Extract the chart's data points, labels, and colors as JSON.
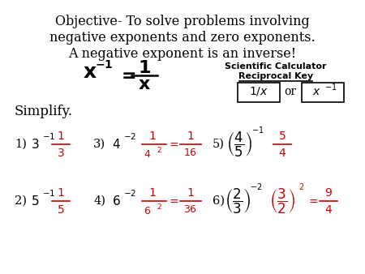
{
  "bg_color": "#ffffff",
  "text_color": "#000000",
  "red_color": "#cc0000",
  "title_line1": "Objective- To solve problems involving",
  "title_line2": "negative exponents and zero exponents.",
  "title_line3": "A negative exponent is an inverse!",
  "fig_width": 4.5,
  "fig_height": 3.38,
  "dpi": 100
}
